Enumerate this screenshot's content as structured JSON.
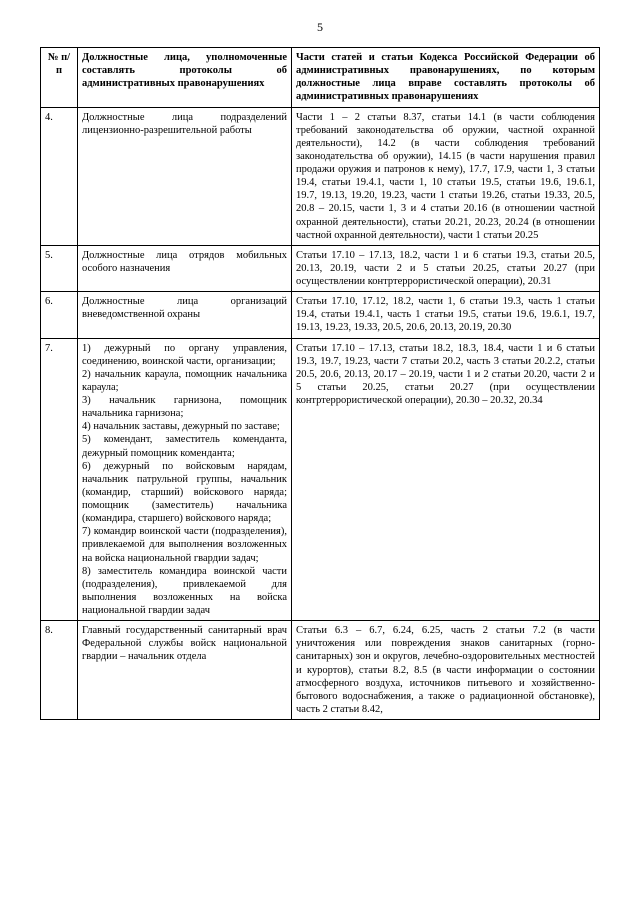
{
  "page_number": "5",
  "columns": {
    "num": "№ п/п",
    "officials": "Должностные лица, уполномоченные составлять протоколы об административных правонарушениях",
    "articles": "Части статей и статьи Кодекса Российской Федерации об административных правонарушениях, по которым должностные лица вправе составлять протоколы об административных правонарушениях"
  },
  "rows": [
    {
      "num": "4.",
      "officials": "Должностные лица подразделений лицензионно-разрешительной работы",
      "articles": "Части 1 – 2 статьи 8.37, статьи 14.1 (в части соблюдения требований законодательства об оружии, частной охранной деятельности), 14.2 (в части соблюдения требований законодательства об оружии), 14.15 (в части нарушения правил продажи оружия и патронов к нему), 17.7, 17.9, части 1, 3 статьи 19.4, статьи 19.4.1, части 1, 10 статьи 19.5, статьи 19.6, 19.6.1, 19.7, 19.13, 19.20, 19.23, части 1 статьи 19.26, статьи 19.33, 20.5, 20.8 – 20.15, части 1, 3 и 4 статьи 20.16 (в отношении частной охранной деятельности), статьи 20.21, 20.23, 20.24 (в отношении частной охранной деятельности), части 1 статьи 20.25"
    },
    {
      "num": "5.",
      "officials": "Должностные лица отрядов мобильных особого назначения",
      "articles": "Статьи 17.10 – 17.13, 18.2, части 1 и 6 статьи 19.3, статьи 20.5, 20.13, 20.19, части 2 и 5 статьи 20.25, статьи 20.27 (при осуществлении контртеррористической операции), 20.31"
    },
    {
      "num": "6.",
      "officials": "Должностные лица организаций вневедомственной охраны",
      "articles": "Статьи 17.10, 17.12, 18.2, части 1, 6 статьи 19.3, часть 1 статьи 19.4, статьи 19.4.1, часть 1 статьи 19.5, статьи 19.6, 19.6.1, 19.7, 19.13, 19.23, 19.33, 20.5, 20.6, 20.13, 20.19, 20.30"
    },
    {
      "num": "7.",
      "officials": "1) дежурный по органу управления, соединению, воинской части, организации;\n2) начальник караула, помощник начальника караула;\n3) начальник гарнизона, помощник начальника гарнизона;\n4) начальник заставы, дежурный по заставе;\n5) комендант, заместитель коменданта, дежурный помощник коменданта;\n6) дежурный по войсковым нарядам, начальник патрульной группы, начальник (командир, старший) войскового наряда; помощник (заместитель) начальника (командира, старшего) войскового наряда;\n7) командир воинской части (подразделения), привлекаемой для выполнения возложенных на войска национальной гвардии задач;\n8) заместитель командира воинской части (подразделения), привлекаемой для выполнения возложенных на войска национальной гвардии задач",
      "articles": "Статьи 17.10 – 17.13, статьи 18.2, 18.3, 18.4, части 1 и 6 статьи 19.3, 19.7, 19.23, части 7 статьи 20.2, часть 3 статьи 20.2.2, статьи 20.5, 20.6, 20.13, 20.17 – 20.19, части 1 и 2 статьи 20.20, части 2 и 5 статьи 20.25, статьи 20.27 (при осуществлении контртеррористической операции), 20.30 – 20.32, 20.34"
    },
    {
      "num": "8.",
      "officials": "Главный государственный санитарный врач Федеральной службы войск национальной гвардии – начальник отдела",
      "articles": "Статьи 6.3 – 6.7, 6.24, 6.25, часть 2 статьи 7.2 (в части уничтожения или повреждения знаков санитарных (горно-санитарных) зон и округов, лечебно-оздоровительных местностей и курортов), статьи 8.2, 8.5 (в части информации о состоянии атмосферного воздуха, источников питьевого и хозяйственно-бытового водоснабжения, а также о радиационной обстановке), часть 2 статьи 8.42,"
    }
  ]
}
